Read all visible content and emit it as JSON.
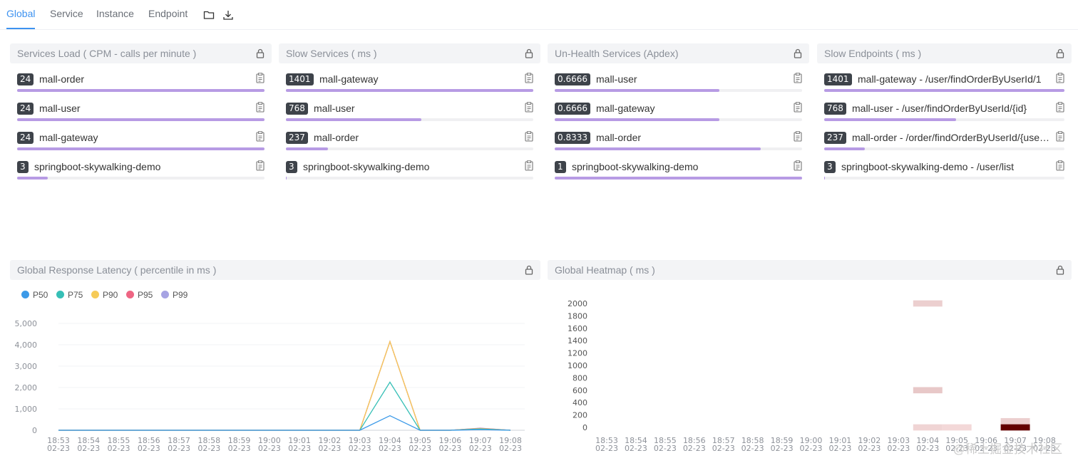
{
  "tabs": [
    {
      "label": "Global",
      "active": true
    },
    {
      "label": "Service",
      "active": false
    },
    {
      "label": "Instance",
      "active": false
    },
    {
      "label": "Endpoint",
      "active": false
    }
  ],
  "panels": {
    "services_load": {
      "title": "Services Load ( CPM - calls per minute )",
      "items": [
        {
          "value": "24",
          "name": "mall-order",
          "ratio": 1.0
        },
        {
          "value": "24",
          "name": "mall-user",
          "ratio": 1.0
        },
        {
          "value": "24",
          "name": "mall-gateway",
          "ratio": 1.0
        },
        {
          "value": "3",
          "name": "springboot-skywalking-demo",
          "ratio": 0.125
        }
      ]
    },
    "slow_services": {
      "title": "Slow Services ( ms )",
      "items": [
        {
          "value": "1401",
          "name": "mall-gateway",
          "ratio": 1.0
        },
        {
          "value": "768",
          "name": "mall-user",
          "ratio": 0.548
        },
        {
          "value": "237",
          "name": "mall-order",
          "ratio": 0.169
        },
        {
          "value": "3",
          "name": "springboot-skywalking-demo",
          "ratio": 0.002
        }
      ]
    },
    "unhealth_services": {
      "title": "Un-Health Services (Apdex)",
      "items": [
        {
          "value": "0.6666",
          "name": "mall-user",
          "ratio": 0.6666
        },
        {
          "value": "0.6666",
          "name": "mall-gateway",
          "ratio": 0.6666
        },
        {
          "value": "0.8333",
          "name": "mall-order",
          "ratio": 0.8333
        },
        {
          "value": "1",
          "name": "springboot-skywalking-demo",
          "ratio": 1.0
        }
      ]
    },
    "slow_endpoints": {
      "title": "Slow Endpoints ( ms )",
      "items": [
        {
          "value": "1401",
          "name": "mall-gateway - /user/findOrderByUserId/1",
          "ratio": 1.0
        },
        {
          "value": "768",
          "name": "mall-user - /user/findOrderByUserId/{id}",
          "ratio": 0.548
        },
        {
          "value": "237",
          "name": "mall-order - /order/findOrderByUserId/{userId}",
          "ratio": 0.169
        },
        {
          "value": "3",
          "name": "springboot-skywalking-demo - /user/list",
          "ratio": 0.002
        }
      ]
    },
    "latency": {
      "title": "Global Response Latency ( percentile in ms )"
    },
    "heatmap": {
      "title": "Global Heatmap ( ms )"
    }
  },
  "colors": {
    "accent": "#3d92f0",
    "bar": "#b79be4",
    "p50": "#3c9ae8",
    "p75": "#36bfb6",
    "p90": "#f6cb58",
    "p95": "#ee6583",
    "p99": "#a6a3e3"
  },
  "watermark": "@稀土掘金技术社区",
  "chart_data": [
    {
      "type": "line",
      "title": "Global Response Latency ( percentile in ms )",
      "legend": [
        "P50",
        "P75",
        "P90",
        "P95",
        "P99"
      ],
      "categories": [
        "18:53\n02-23",
        "18:54\n02-23",
        "18:55\n02-23",
        "18:56\n02-23",
        "18:57\n02-23",
        "18:58\n02-23",
        "18:59\n02-23",
        "19:00\n02-23",
        "19:01\n02-23",
        "19:02\n02-23",
        "19:03\n02-23",
        "19:04\n02-23",
        "19:05\n02-23",
        "19:06\n02-23",
        "19:07\n02-23",
        "19:08\n02-23"
      ],
      "x_times": [
        "18:53",
        "18:54",
        "18:55",
        "18:56",
        "18:57",
        "18:58",
        "18:59",
        "19:00",
        "19:01",
        "19:02",
        "19:03",
        "19:04",
        "19:05",
        "19:06",
        "19:07",
        "19:08"
      ],
      "x_date": "02-23",
      "yticks": [
        "0",
        "1,000",
        "2,000",
        "3,000",
        "4,000",
        "5,000"
      ],
      "ylim": [
        0,
        5000
      ],
      "series": [
        {
          "name": "P50",
          "values": [
            0,
            0,
            0,
            0,
            0,
            0,
            0,
            0,
            0,
            0,
            0,
            680,
            0,
            0,
            30,
            0
          ]
        },
        {
          "name": "P75",
          "values": [
            0,
            0,
            0,
            0,
            0,
            0,
            0,
            0,
            0,
            0,
            0,
            2250,
            0,
            0,
            60,
            0
          ]
        },
        {
          "name": "P90",
          "values": [
            0,
            0,
            0,
            0,
            0,
            0,
            0,
            0,
            0,
            0,
            0,
            4150,
            0,
            0,
            80,
            0
          ]
        },
        {
          "name": "P95",
          "values": [
            0,
            0,
            0,
            0,
            0,
            0,
            0,
            0,
            0,
            0,
            0,
            4150,
            0,
            0,
            90,
            0
          ]
        },
        {
          "name": "P99",
          "values": [
            0,
            0,
            0,
            0,
            0,
            0,
            0,
            0,
            0,
            0,
            0,
            4150,
            0,
            0,
            100,
            0
          ]
        }
      ]
    },
    {
      "type": "heatmap",
      "title": "Global Heatmap ( ms )",
      "x_times": [
        "18:53",
        "18:54",
        "18:55",
        "18:56",
        "18:57",
        "18:58",
        "18:59",
        "19:00",
        "19:01",
        "19:02",
        "19:03",
        "19:04",
        "19:05",
        "19:06",
        "19:07",
        "19:08"
      ],
      "x_date": "02-23",
      "yticks": [
        "0",
        "200",
        "400",
        "600",
        "800",
        "1000",
        "1200",
        "1400",
        "1600",
        "1800",
        "2000"
      ],
      "ylim": [
        0,
        2000
      ],
      "cells": [
        {
          "x": "19:04",
          "y": 2000,
          "level": 0.12
        },
        {
          "x": "19:04",
          "y": 600,
          "level": 0.15
        },
        {
          "x": "19:04",
          "y": 0,
          "level": 0.1
        },
        {
          "x": "19:05",
          "y": 0,
          "level": 0.08
        },
        {
          "x": "19:07",
          "y": 100,
          "level": 0.12
        },
        {
          "x": "19:07",
          "y": 0,
          "level": 1.0
        }
      ]
    }
  ]
}
